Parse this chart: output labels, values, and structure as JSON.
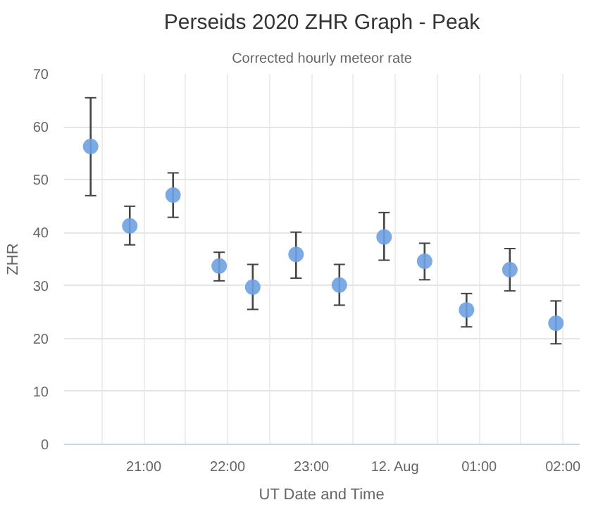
{
  "chart_data": {
    "type": "scatter",
    "title": "Perseids 2020 ZHR Graph - Peak",
    "subtitle": "Corrected hourly meteor rate",
    "xlabel": "UT Date and Time",
    "ylabel": "ZHR",
    "x": [
      "2020-08-11T20:22",
      "2020-08-11T20:50",
      "2020-08-11T21:21",
      "2020-08-11T21:54",
      "2020-08-11T22:18",
      "2020-08-11T22:49",
      "2020-08-11T23:20",
      "2020-08-11T23:52",
      "2020-08-12T00:21",
      "2020-08-12T00:51",
      "2020-08-12T01:22",
      "2020-08-12T01:55"
    ],
    "series": [
      {
        "color": "#6ea1e2",
        "values": [
          56.3,
          41.3,
          47.1,
          33.7,
          29.7,
          35.9,
          30.1,
          39.2,
          34.6,
          25.4,
          33,
          22.9
        ],
        "errors": [
          [
            47,
            65.5
          ],
          [
            37.7,
            45
          ],
          [
            42.9,
            51.3
          ],
          [
            30.9,
            36.3
          ],
          [
            25.5,
            34
          ],
          [
            31.4,
            40.1
          ],
          [
            26.3,
            34
          ],
          [
            34.8,
            43.8
          ],
          [
            31.1,
            38
          ],
          [
            22.2,
            28.5
          ],
          [
            29,
            37
          ],
          [
            19,
            27.1
          ]
        ]
      }
    ],
    "xlim": [
      "2020-08-11T20:03",
      "2020-08-12T02:12"
    ],
    "xticks": [
      {
        "value": "2020-08-11T20:30",
        "label": null
      },
      {
        "value": "2020-08-11T21:00",
        "label": "21:00"
      },
      {
        "value": "2020-08-11T21:30",
        "label": null
      },
      {
        "value": "2020-08-11T22:00",
        "label": "22:00"
      },
      {
        "value": "2020-08-11T22:30",
        "label": null
      },
      {
        "value": "2020-08-11T23:00",
        "label": "23:00"
      },
      {
        "value": "2020-08-11T23:30",
        "label": null
      },
      {
        "value": "2020-08-12T00:00",
        "label": "12. Aug"
      },
      {
        "value": "2020-08-12T00:30",
        "label": null
      },
      {
        "value": "2020-08-12T01:00",
        "label": "01:00"
      },
      {
        "value": "2020-08-12T01:30",
        "label": null
      },
      {
        "value": "2020-08-12T02:00",
        "label": "02:00"
      }
    ],
    "ylim": [
      0,
      70
    ],
    "yticks": [
      0,
      10,
      20,
      30,
      40,
      50,
      60,
      70
    ],
    "grid": true,
    "marker": "circle"
  }
}
